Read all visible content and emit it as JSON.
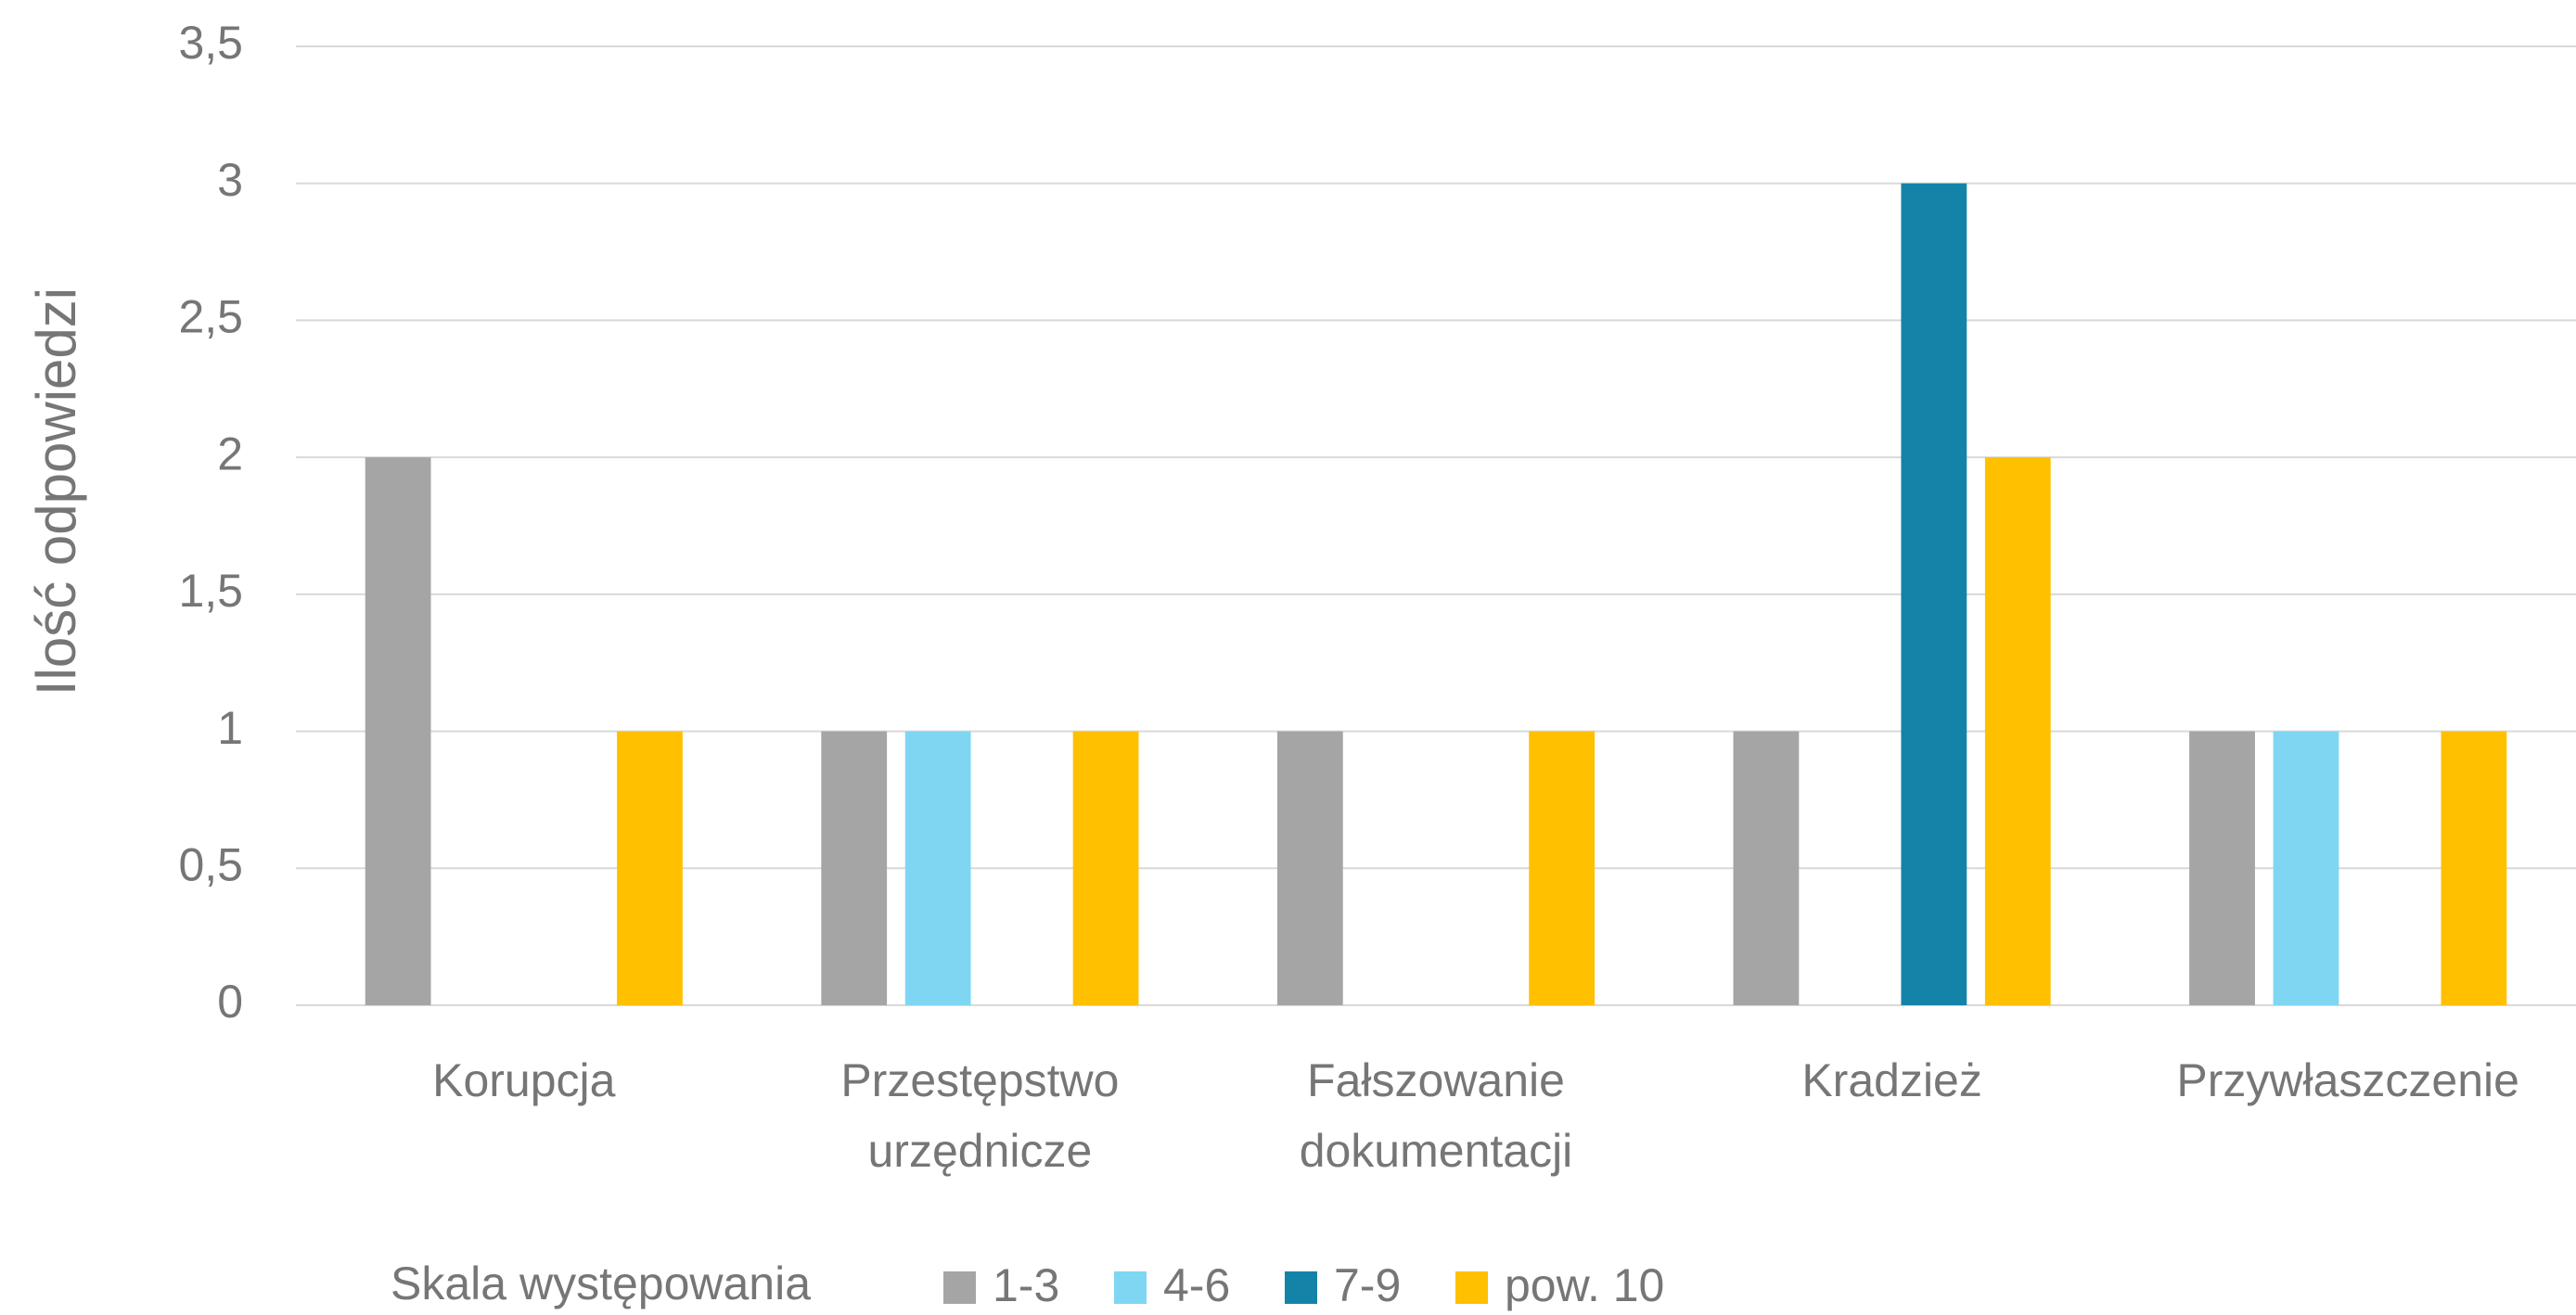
{
  "chart_data": {
    "type": "bar",
    "y_label": "Ilość odpowiedzi",
    "legend_title": "Skala występowania",
    "categories": [
      "Korupcja",
      "Przestępstwo urzędnicze",
      "Fałszowanie dokumentacji",
      "Kradzież",
      "Przywłaszczenie"
    ],
    "series": [
      {
        "name": "1-3",
        "color": "#a5a5a5",
        "values": [
          2,
          1,
          1,
          1,
          1
        ]
      },
      {
        "name": "4-6",
        "color": "#7fd6f2",
        "values": [
          0,
          1,
          0,
          0,
          1
        ]
      },
      {
        "name": "7-9",
        "color": "#1384a8",
        "values": [
          0,
          0,
          0,
          3,
          0
        ]
      },
      {
        "name": "pow. 10",
        "color": "#ffc000",
        "values": [
          1,
          1,
          1,
          2,
          1
        ]
      }
    ],
    "ylim": [
      0,
      3.5
    ],
    "yticks": [
      0,
      {
        "value": 0.5,
        "label": "0,5"
      },
      1,
      {
        "value": 1.5,
        "label": "1,5"
      },
      2,
      {
        "value": 2.5,
        "label": "2,5"
      },
      3,
      {
        "value": 3.5,
        "label": "3,5"
      }
    ],
    "grid": true,
    "legend": "bottom"
  }
}
